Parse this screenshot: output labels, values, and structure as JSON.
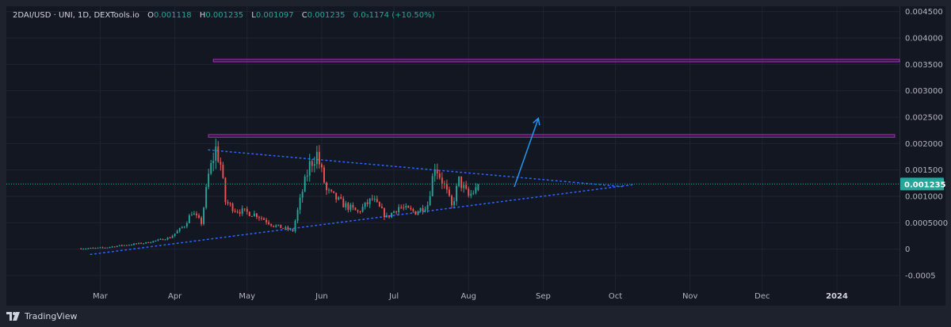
{
  "legend": {
    "symbol": "2DAI/USD · UNI, 1D, DEXTools.io",
    "open_label": "O",
    "open": "0.001118",
    "high_label": "H",
    "high": "0.001235",
    "low_label": "L",
    "low": "0.001097",
    "close_label": "C",
    "close": "0.001235",
    "change": "0.0₃1174 (+10.50%)"
  },
  "branding": {
    "name": "TradingView",
    "logo_icon": "tradingview-logo-icon"
  },
  "colors": {
    "up": "#26a69a",
    "down": "#ef5350",
    "trendline": "#2962ff",
    "arrow": "#2196f3",
    "zone": "#9c27b0",
    "price_line": "#26a69a",
    "last_price_bg": "#26a69a"
  },
  "chart_data": {
    "type": "candlestick",
    "title": "",
    "xlabel": "",
    "ylabel": "",
    "y_ticks": [
      "0.004500",
      "0.004000",
      "0.003500",
      "0.003000",
      "0.002500",
      "0.002000",
      "0.001500",
      "0.001000",
      "0.0005000",
      "0",
      "-0.0005"
    ],
    "y_tick_values": [
      0.0045,
      0.004,
      0.0035,
      0.003,
      0.0025,
      0.002,
      0.0015,
      0.001,
      0.0005,
      0,
      -0.0005
    ],
    "ylim": [
      -0.0008,
      0.0046
    ],
    "x_ticks": [
      "Mar",
      "Apr",
      "May",
      "Jun",
      "Jul",
      "Aug",
      "Sep",
      "Oct",
      "Nov",
      "Dec",
      "2024"
    ],
    "x_tick_dates": [
      "2023-03-01",
      "2023-04-01",
      "2023-05-01",
      "2023-06-01",
      "2023-07-01",
      "2023-08-01",
      "2023-09-01",
      "2023-10-01",
      "2023-11-01",
      "2023-12-01",
      "2024-01-01"
    ],
    "xlim": [
      "2023-01-21",
      "2024-01-27"
    ],
    "grid": true,
    "last_price": "0.001235",
    "last_price_value": 0.001235,
    "price_anchors": [
      [
        "2023-02-21",
        1e-05
      ],
      [
        "2023-03-01",
        2e-05
      ],
      [
        "2023-03-10",
        7e-05
      ],
      [
        "2023-03-20",
        0.00012
      ],
      [
        "2023-03-30",
        0.00022
      ],
      [
        "2023-04-05",
        0.00045
      ],
      [
        "2023-04-08",
        0.0007
      ],
      [
        "2023-04-12",
        0.0005
      ],
      [
        "2023-04-15",
        0.0014
      ],
      [
        "2023-04-18",
        0.0019
      ],
      [
        "2023-04-20",
        0.0016
      ],
      [
        "2023-04-22",
        0.0009
      ],
      [
        "2023-04-26",
        0.00075
      ],
      [
        "2023-05-05",
        0.00065
      ],
      [
        "2023-05-12",
        0.00045
      ],
      [
        "2023-05-20",
        0.00035
      ],
      [
        "2023-05-24",
        0.0011
      ],
      [
        "2023-05-27",
        0.0016
      ],
      [
        "2023-05-30",
        0.0018
      ],
      [
        "2023-06-03",
        0.0011
      ],
      [
        "2023-06-10",
        0.00085
      ],
      [
        "2023-06-16",
        0.0007
      ],
      [
        "2023-06-22",
        0.00095
      ],
      [
        "2023-06-28",
        0.0006
      ],
      [
        "2023-07-03",
        0.0008
      ],
      [
        "2023-07-10",
        0.0007
      ],
      [
        "2023-07-15",
        0.00085
      ],
      [
        "2023-07-18",
        0.0016
      ],
      [
        "2023-07-22",
        0.0012
      ],
      [
        "2023-07-25",
        0.0008
      ],
      [
        "2023-07-28",
        0.0013
      ],
      [
        "2023-08-01",
        0.001
      ],
      [
        "2023-08-04",
        0.00113
      ]
    ],
    "last_candle": {
      "open": 0.001118,
      "high": 0.001235,
      "low": 0.001097,
      "close": 0.001235
    },
    "horizontal_zones": [
      {
        "name": "upper-resistance-zone",
        "from": "2023-04-17",
        "to": "2024-01-27",
        "y_low": 0.003555,
        "y_high": 0.003595
      },
      {
        "name": "lower-resistance-zone",
        "from": "2023-04-15",
        "to": "2024-01-25",
        "y_low": 0.00212,
        "y_high": 0.00217
      }
    ],
    "trendlines": [
      {
        "name": "descending-trendline",
        "from": [
          "2023-04-15",
          0.00188
        ],
        "to": [
          "2023-10-05",
          0.00118
        ]
      },
      {
        "name": "ascending-trendline",
        "from": [
          "2023-02-25",
          -0.0001
        ],
        "to": [
          "2023-10-08",
          0.00122
        ]
      }
    ],
    "arrow": {
      "from": [
        "2023-08-20",
        0.00118
      ],
      "to": [
        "2023-08-30",
        0.00248
      ]
    }
  }
}
